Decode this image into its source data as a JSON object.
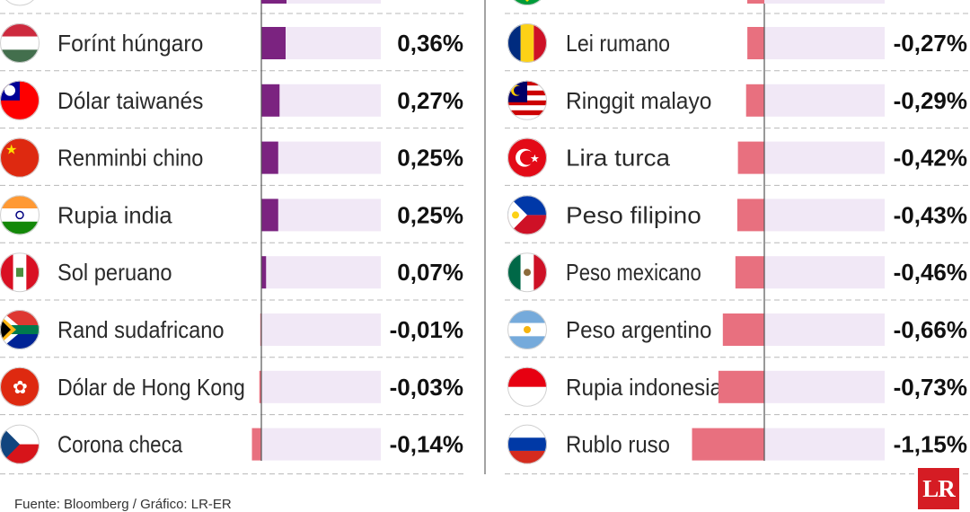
{
  "source": "Fuente: Bloomberg / Gráfico: LR-ER",
  "logo": "LR",
  "colors": {
    "positive": "#7b2380",
    "negative": "#e8707f",
    "track": "#f1e8f6",
    "divider": "#b8b8b8",
    "axis": "#555555"
  },
  "chart_data": {
    "type": "bar",
    "orientation": "horizontal",
    "unit": "%",
    "columns": [
      {
        "categories": [
          "Forínt húngaro",
          "Dólar taiwanés",
          "Renminbi chino",
          "Rupia india",
          "Sol peruano",
          "Rand sudafricano",
          "Dólar de Hong Kong",
          "Corona checa"
        ],
        "values": [
          0.36,
          0.27,
          0.25,
          0.25,
          0.07,
          -0.01,
          -0.03,
          -0.14
        ],
        "value_labels": [
          "0,36%",
          "0,27%",
          "0,25%",
          "0,25%",
          "0,07%",
          "-0,01%",
          "-0,03%",
          "-0,14%"
        ],
        "flags": [
          "hungary-flag-icon",
          "taiwan-flag-icon",
          "china-flag-icon",
          "india-flag-icon",
          "peru-flag-icon",
          "south-africa-flag-icon",
          "hong-kong-flag-icon",
          "czech-flag-icon"
        ]
      },
      {
        "categories": [
          "Lei rumano",
          "Ringgit malayo",
          "Lira turca",
          "Peso filipino",
          "Peso mexicano",
          "Peso argentino",
          "Rupia indonesia",
          "Rublo ruso"
        ],
        "values": [
          -0.27,
          -0.29,
          -0.42,
          -0.43,
          -0.46,
          -0.66,
          -0.73,
          -1.15
        ],
        "value_labels": [
          "-0,27%",
          "-0,29%",
          "-0,42%",
          "-0,43%",
          "-0,46%",
          "-0,66%",
          "-0,73%",
          "-1,15%"
        ],
        "flags": [
          "romania-flag-icon",
          "malaysia-flag-icon",
          "turkey-flag-icon",
          "philippines-flag-icon",
          "mexico-flag-icon",
          "argentina-flag-icon",
          "indonesia-flag-icon",
          "russia-flag-icon"
        ]
      }
    ]
  }
}
